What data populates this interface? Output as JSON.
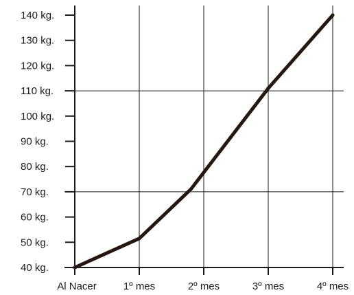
{
  "chart_data": {
    "type": "line",
    "categories": [
      "Al Nacer",
      "1º mes",
      "2º mes",
      "3º mes",
      "4º mes"
    ],
    "y_ticks": [
      "40 kg.",
      "50 kg.",
      "60 kg.",
      "70 kg.",
      "80 kg.",
      "90 kg.",
      "100 kg.",
      "110 kg.",
      "120 kg.",
      "130 kg.",
      "140 kg."
    ],
    "y_tick_values": [
      40,
      50,
      60,
      70,
      80,
      90,
      100,
      110,
      120,
      130,
      140
    ],
    "ylim": [
      40,
      140
    ],
    "xlim": [
      0,
      4
    ],
    "series": [
      {
        "x": [
          0,
          1,
          1.8,
          3,
          4
        ],
        "values": [
          40,
          51.5,
          71,
          111,
          140
        ]
      }
    ],
    "horizontal_grid_values": [
      70,
      110
    ],
    "grid": true,
    "line_color": "#231710",
    "title": "",
    "xlabel": "",
    "ylabel": ""
  }
}
